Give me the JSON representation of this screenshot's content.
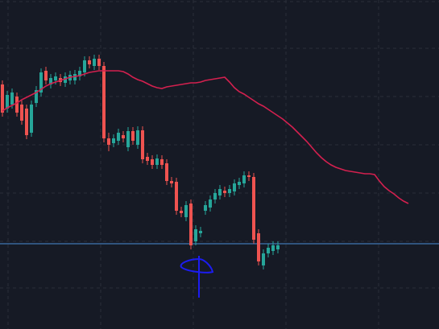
{
  "chart_data": {
    "type": "candlestick",
    "categories": [
      null,
      null,
      null,
      null,
      null,
      null,
      null,
      null,
      null,
      null,
      null,
      null,
      null,
      null,
      null,
      null,
      null,
      null,
      null,
      null,
      null,
      null,
      null,
      null,
      null,
      null,
      null,
      null,
      null,
      null,
      null,
      null,
      null,
      null,
      null,
      null,
      null,
      null,
      null,
      null,
      null,
      null,
      null,
      null,
      null,
      null,
      null,
      null,
      null,
      null,
      null,
      null,
      null,
      null,
      null,
      null,
      null,
      null,
      null,
      null,
      null,
      null,
      null,
      null,
      null,
      null,
      null,
      null,
      null,
      null,
      null,
      null,
      null,
      null,
      null,
      null,
      null,
      null,
      null,
      null,
      null,
      null,
      null,
      null,
      null
    ],
    "ylim": [
      0,
      409
    ],
    "candles": {
      "up_color": "#26a69a",
      "down_color": "#ef5350",
      "open": [
        304,
        274,
        279,
        289,
        279,
        274,
        244,
        281,
        294,
        321,
        304,
        309,
        312,
        306,
        309,
        309,
        314,
        319,
        334,
        327,
        336,
        327,
        237,
        231,
        234,
        241,
        226,
        246,
        229,
        247,
        214,
        211,
        204,
        211,
        206,
        184,
        183,
        147,
        139,
        156,
        109,
        119,
        147,
        151,
        161,
        166,
        172,
        169,
        171,
        179,
        181,
        191,
        189,
        119,
        79,
        94,
        97,
        99,
        null,
        null,
        null,
        null,
        null,
        null,
        null,
        null,
        null,
        null,
        null,
        null,
        null,
        null,
        null,
        null,
        null,
        null,
        null,
        null,
        null,
        null,
        null,
        null,
        null,
        null,
        null
      ],
      "high": [
        309,
        296,
        299,
        294,
        284,
        279,
        284,
        302,
        324,
        326,
        317,
        319,
        317,
        319,
        321,
        322,
        326,
        339,
        339,
        341,
        341,
        332,
        244,
        242,
        249,
        246,
        251,
        251,
        252,
        252,
        219,
        216,
        217,
        216,
        211,
        189,
        188,
        152,
        159,
        161,
        129,
        127,
        159,
        166,
        174,
        179,
        177,
        179,
        186,
        188,
        196,
        196,
        194,
        124,
        99,
        106,
        109,
        109,
        null,
        null,
        null,
        null,
        null,
        null,
        null,
        null,
        null,
        null,
        null,
        null,
        null,
        null,
        null,
        null,
        null,
        null,
        null,
        null,
        null,
        null,
        null,
        null,
        null,
        null,
        null
      ],
      "low": [
        264,
        269,
        274,
        264,
        254,
        236,
        239,
        276,
        289,
        304,
        299,
        304,
        302,
        301,
        304,
        304,
        309,
        314,
        324,
        322,
        322,
        232,
        221,
        226,
        229,
        232,
        221,
        229,
        224,
        206,
        204,
        199,
        199,
        199,
        179,
        176,
        142,
        139,
        134,
        99,
        104,
        114,
        142,
        146,
        156,
        161,
        164,
        164,
        166,
        174,
        176,
        184,
        106,
        79,
        74,
        89,
        92,
        94,
        null,
        null,
        null,
        null,
        null,
        null,
        null,
        null,
        null,
        null,
        null,
        null,
        null,
        null,
        null,
        null,
        null,
        null,
        null,
        null,
        null,
        null,
        null,
        null,
        null,
        null,
        null
      ],
      "close": [
        269,
        291,
        294,
        269,
        259,
        241,
        279,
        297,
        319,
        309,
        312,
        314,
        307,
        314,
        316,
        317,
        321,
        334,
        329,
        336,
        327,
        237,
        229,
        237,
        244,
        237,
        246,
        234,
        247,
        211,
        209,
        204,
        212,
        204,
        184,
        181,
        147,
        144,
        154,
        104,
        124,
        122,
        154,
        161,
        169,
        174,
        169,
        174,
        181,
        183,
        191,
        189,
        111,
        84,
        94,
        101,
        104,
        104,
        null,
        null,
        null,
        null,
        null,
        null,
        null,
        null,
        null,
        null,
        null,
        null,
        null,
        null,
        null,
        null,
        null,
        null,
        null,
        null,
        null,
        null,
        null,
        null,
        null,
        null,
        null
      ]
    },
    "moving_average": {
      "color": "#d3204f",
      "values": [
        271,
        275,
        278,
        281,
        285,
        288,
        291,
        294,
        298,
        302,
        305,
        307,
        309,
        311,
        313,
        314,
        315,
        317,
        319,
        320,
        321,
        321,
        321,
        321,
        321,
        320,
        317,
        313,
        310,
        308,
        305,
        302,
        300,
        299,
        301,
        302,
        303,
        304,
        305,
        306,
        306,
        307,
        309,
        310,
        311,
        312,
        313,
        307,
        300,
        295,
        292,
        288,
        284,
        280,
        277,
        273,
        269,
        265,
        261,
        256,
        251,
        245,
        239,
        233,
        226,
        219,
        213,
        208,
        204,
        201,
        199,
        197,
        196,
        195,
        194,
        193,
        193,
        192,
        184,
        177,
        172,
        168,
        163,
        159,
        156
      ]
    },
    "price_line": {
      "value": 106,
      "color": "#4a8fd8"
    }
  }
}
